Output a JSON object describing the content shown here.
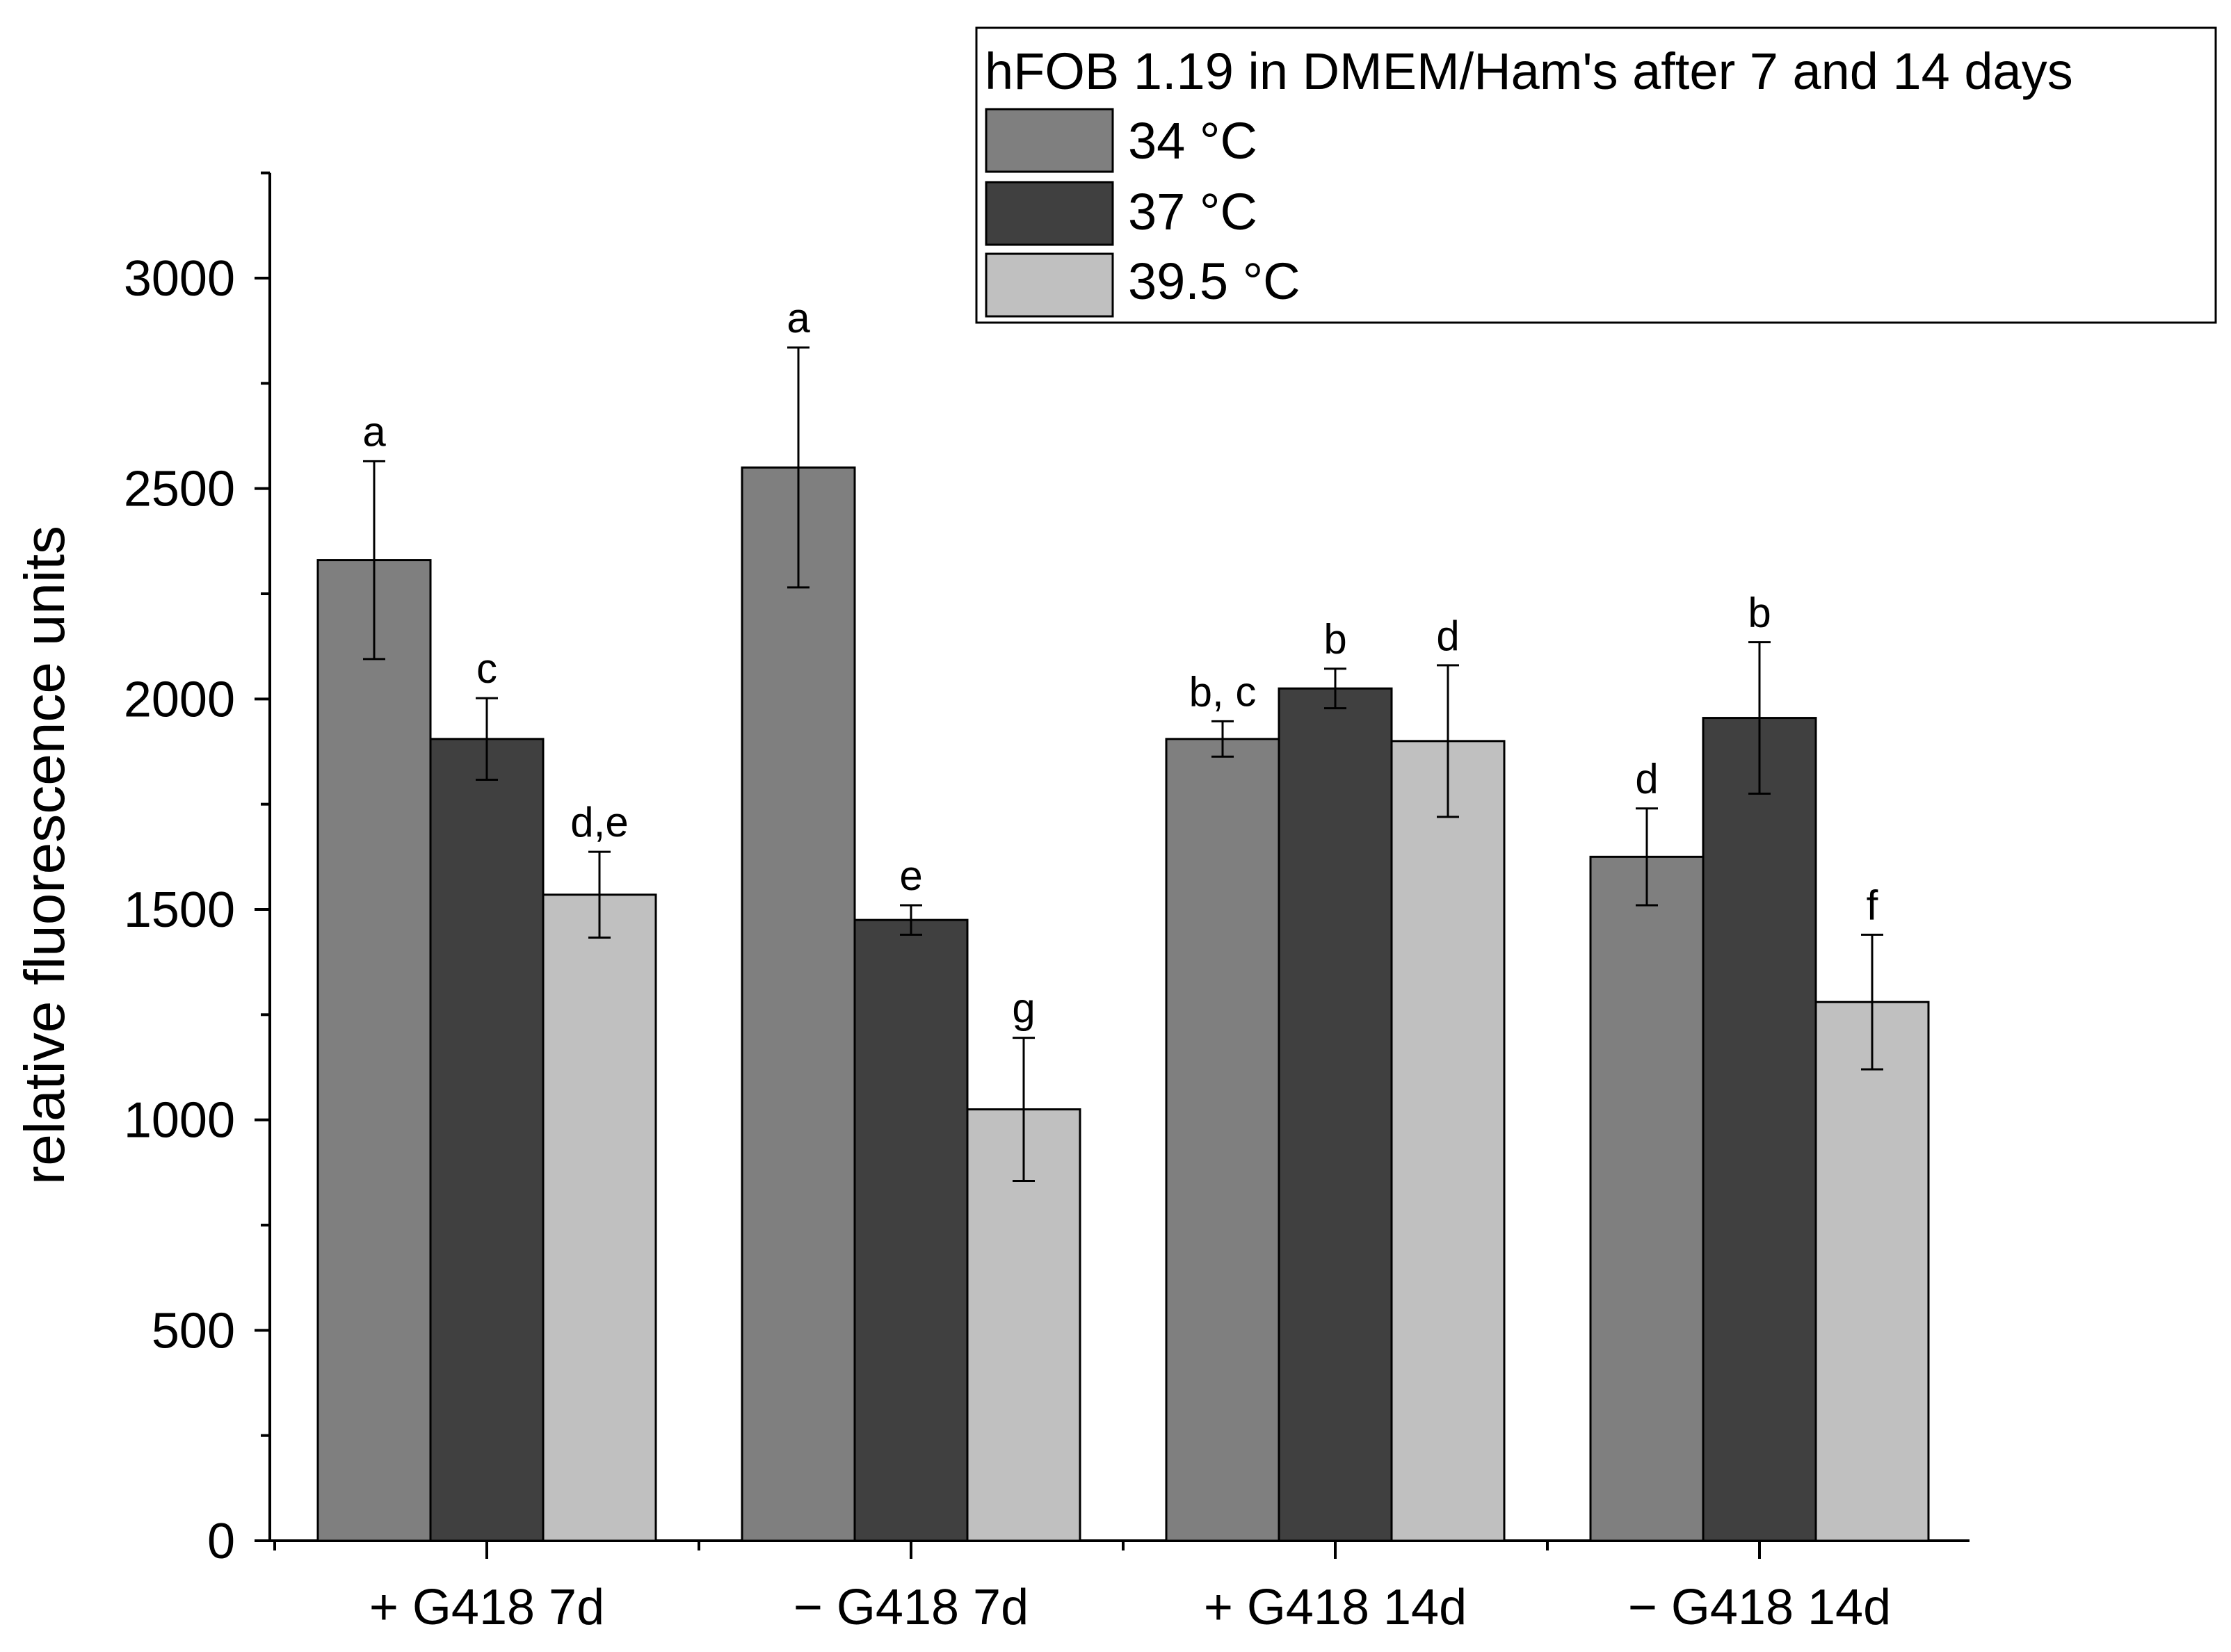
{
  "chart_data": {
    "type": "bar",
    "title": "",
    "xlabel": "",
    "ylabel": "relative fluorescence units",
    "ylim": [
      0,
      3250
    ],
    "yticks": [
      0,
      500,
      1000,
      1500,
      2000,
      2500,
      3000
    ],
    "grid": false,
    "legend_position": "top-right",
    "legend_title": "hFOB 1.19 in DMEM/Ham's after 7 and 14 days",
    "categories": [
      "+ G418 7d",
      "− G418 7d",
      "+ G418 14d",
      "− G418 14d"
    ],
    "series": [
      {
        "name": "34 °C",
        "color": "#7f7f7f",
        "values": [
          2330,
          2550,
          1905,
          1625
        ],
        "errors": [
          235,
          285,
          42,
          115
        ],
        "labels": [
          "a",
          "a",
          "b, c",
          "d"
        ]
      },
      {
        "name": "37 °C",
        "color": "#404040",
        "values": [
          1905,
          1475,
          2025,
          1955
        ],
        "errors": [
          97,
          35,
          47,
          180
        ],
        "labels": [
          "c",
          "e",
          "b",
          "b"
        ]
      },
      {
        "name": "39.5 °C",
        "color": "#c0c0c0",
        "values": [
          1535,
          1025,
          1900,
          1280
        ],
        "errors": [
          102,
          170,
          180,
          160
        ],
        "labels": [
          "d,e",
          "g",
          "d",
          "f"
        ]
      }
    ]
  }
}
